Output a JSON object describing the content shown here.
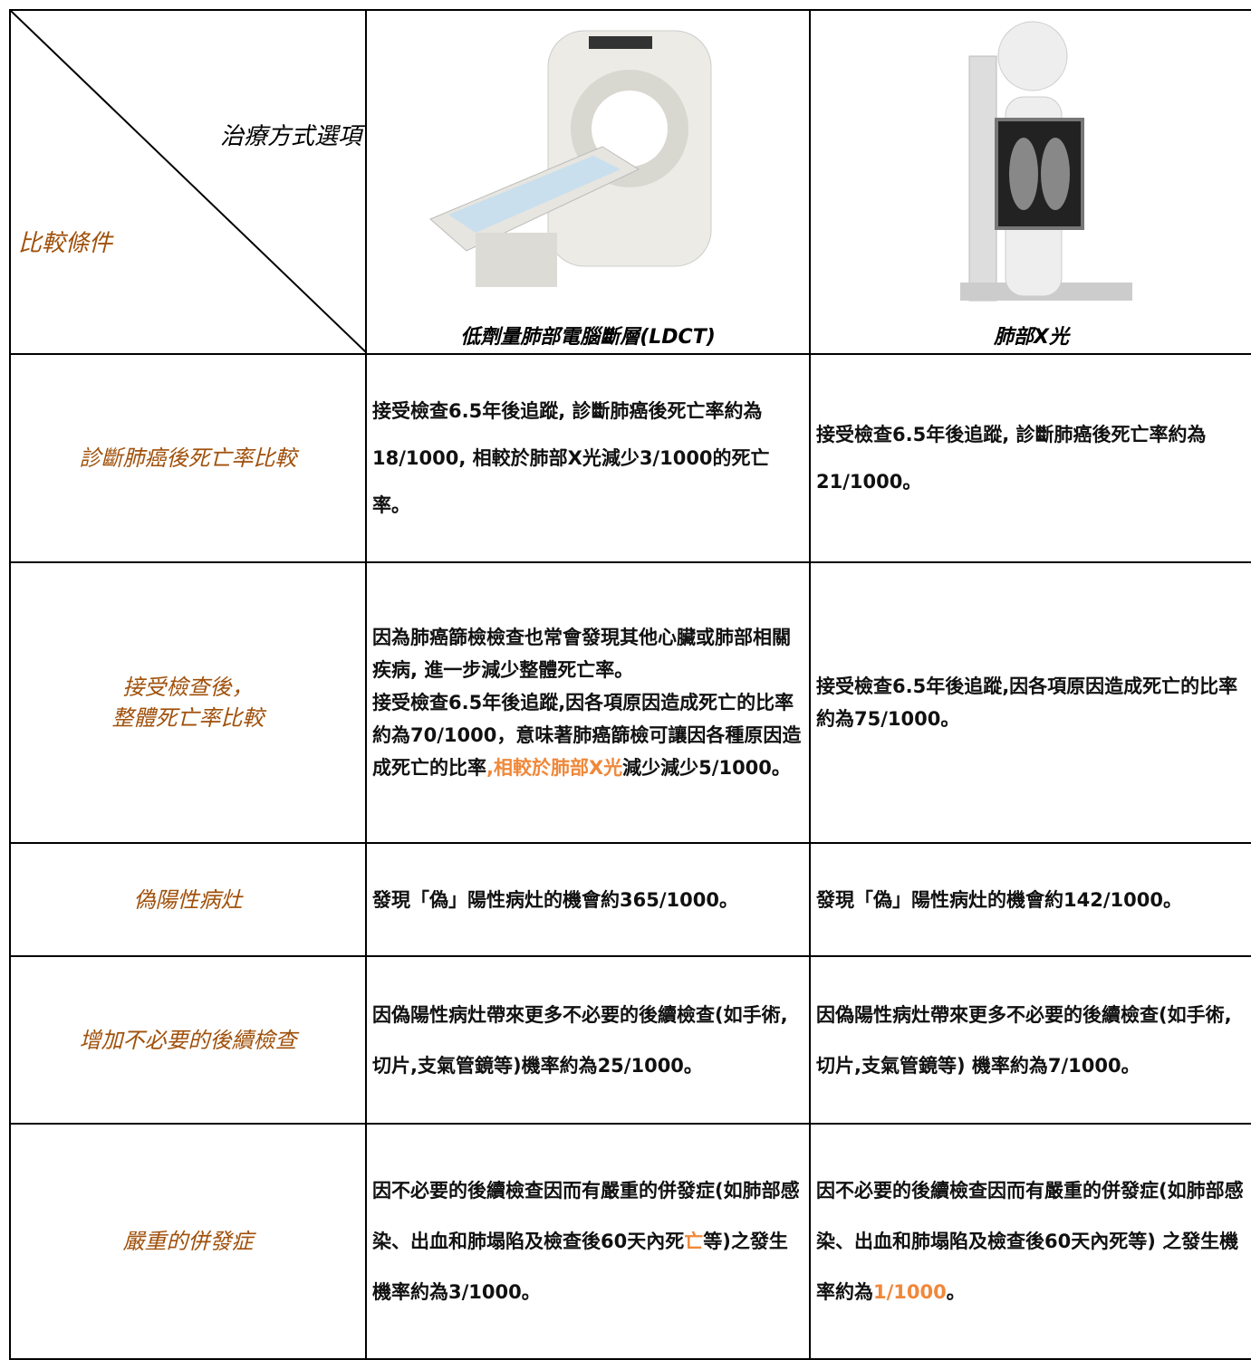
{
  "header": {
    "column_label": "治療方式選項",
    "row_label": "比較條件",
    "options": [
      "低劑量肺部電腦斷層(LDCT)",
      "肺部X光"
    ]
  },
  "rows": [
    {
      "condition": [
        "診斷肺癌後死亡率比較"
      ],
      "cells": [
        [
          [
            "接受檢查6.5年後追蹤, 診斷肺癌後死亡率約為18/1000, 相較於肺部X光減少3/1000的死亡率。"
          ]
        ],
        [
          [
            "接受檢查6.5年後追蹤, 診斷肺癌後死亡率約為21/1000。"
          ]
        ]
      ]
    },
    {
      "condition": [
        "接受檢查後，",
        "整體死亡率比較"
      ],
      "cells": [
        [
          [
            "因為肺癌篩檢檢查也常會發現其他心臟或肺部相關疾病, 進一步減少整體死亡率。"
          ],
          [
            "接受檢查6.5年後追蹤,因各項原因造成死亡的比率約為70/1000，意味著肺癌篩檢可讓因各種原因造成死亡的比率",
            {
              "text": ",相較於肺部X光",
              "color": "#f0883a"
            },
            "減少減少5/1000。"
          ]
        ],
        [
          [
            "接受檢查6.5年後追蹤,因各項原因造成死亡的比率約為75/1000。"
          ]
        ]
      ]
    },
    {
      "condition": [
        "偽陽性病灶"
      ],
      "cells": [
        [
          [
            "發現「偽」陽性病灶的機會約365/1000。"
          ]
        ],
        [
          [
            "發現「偽」陽性病灶的機會約142/1000。"
          ]
        ]
      ]
    },
    {
      "condition": [
        "增加不必要的後續檢查"
      ],
      "cells": [
        [
          [
            "因偽陽性病灶帶來更多不必要的後續檢查(如手術,切片,支氣管鏡等)機率約為25/1000。"
          ]
        ],
        [
          [
            "因偽陽性病灶帶來更多不必要的後續檢查(如手術,切片,支氣管鏡等) 機率約為7/1000。"
          ]
        ]
      ]
    },
    {
      "condition": [
        "嚴重的併發症"
      ],
      "cells": [
        [
          [
            "因不必要的後續檢查因而有嚴重的併發症(如肺部感染、出血和肺塌陷及檢查後60天內死",
            {
              "text": "亡",
              "color": "#f0883a"
            },
            "等)之發生機率約為3/1000。"
          ]
        ],
        [
          [
            "因不必要的後續檢查因而有嚴重的併發症(如肺部感染、出血和肺塌陷及檢查後60天內死等) 之發生機率約為",
            {
              "text": "1/1000",
              "color": "#f0883a"
            },
            "。"
          ]
        ]
      ]
    }
  ]
}
